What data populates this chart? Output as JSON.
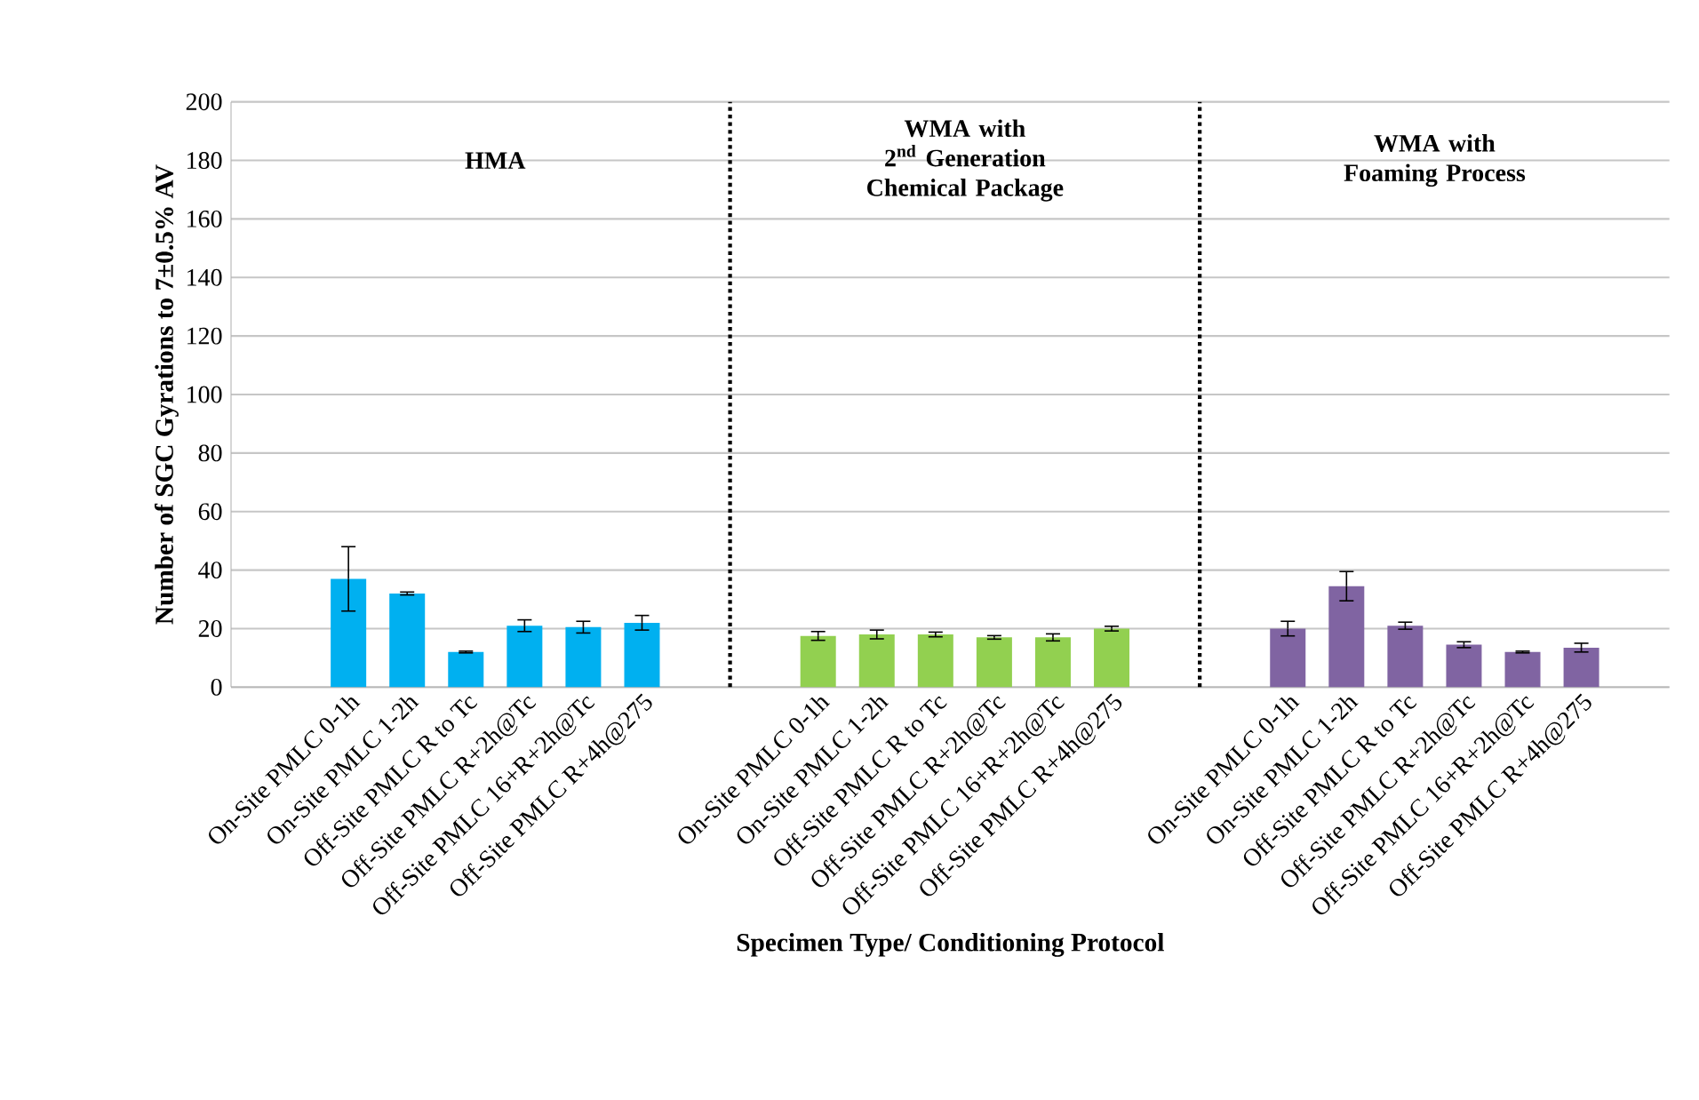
{
  "chart_data": {
    "type": "bar",
    "xlabel": "Specimen Type/ Conditioning Protocol",
    "ylabel": "Number of SGC Gyrations to 7±0.5% AV",
    "categories": [
      null,
      "On-Site PMLC 0-1h",
      "On-Site PMLC 1-2h",
      "Off-Site PMLC R to Tc",
      "Off-Site PMLC R+2h@Tc",
      "Off-Site PMLC 16+R+2h@Tc",
      "Off-Site PMLC R+4h@275",
      null,
      null,
      "On-Site PMLC 0-1h",
      "On-Site PMLC 1-2h",
      "Off-Site PMLC R to Tc",
      "Off-Site PMLC R+2h@Tc",
      "Off-Site PMLC 16+R+2h@Tc",
      "Off-Site PMLC R+4h@275",
      null,
      null,
      "On-Site PMLC 0-1h",
      "On-Site PMLC 1-2h",
      "Off-Site PMLC R to Tc",
      "Off-Site PMLC R+2h@Tc",
      "Off-Site PMLC 16+R+2h@Tc",
      "Off-Site PMLC R+4h@275",
      null
    ],
    "values": [
      null,
      37,
      32,
      12,
      21,
      20.5,
      22,
      null,
      null,
      17.5,
      18,
      18,
      17,
      17,
      20,
      null,
      null,
      20,
      34.5,
      21,
      14.5,
      12,
      13.5,
      null
    ],
    "errors": [
      null,
      11,
      0.5,
      0.3,
      2,
      2,
      2.5,
      null,
      null,
      1.5,
      1.5,
      0.8,
      0.6,
      1.2,
      0.8,
      null,
      null,
      2.5,
      5,
      1.2,
      1,
      0.3,
      1.5,
      null
    ],
    "colors": [
      "#00b0f0",
      "#00b0f0",
      "#00b0f0",
      "#00b0f0",
      "#00b0f0",
      "#00b0f0",
      "#00b0f0",
      "#00b0f0",
      "#92d050",
      "#92d050",
      "#92d050",
      "#92d050",
      "#92d050",
      "#92d050",
      "#92d050",
      "#92d050",
      "#8064a2",
      "#8064a2",
      "#8064a2",
      "#8064a2",
      "#8064a2",
      "#8064a2",
      "#8064a2",
      "#8064a2"
    ],
    "ylim": [
      0,
      200
    ],
    "yticks": [
      0,
      20,
      40,
      60,
      80,
      100,
      120,
      140,
      160,
      180,
      200
    ],
    "grid": "y",
    "annotations": [
      "**HMA**",
      "**WMA with 2$^{nd}$ Generation Chemical Package**",
      "**WMA with Foaming Process**"
    ]
  }
}
